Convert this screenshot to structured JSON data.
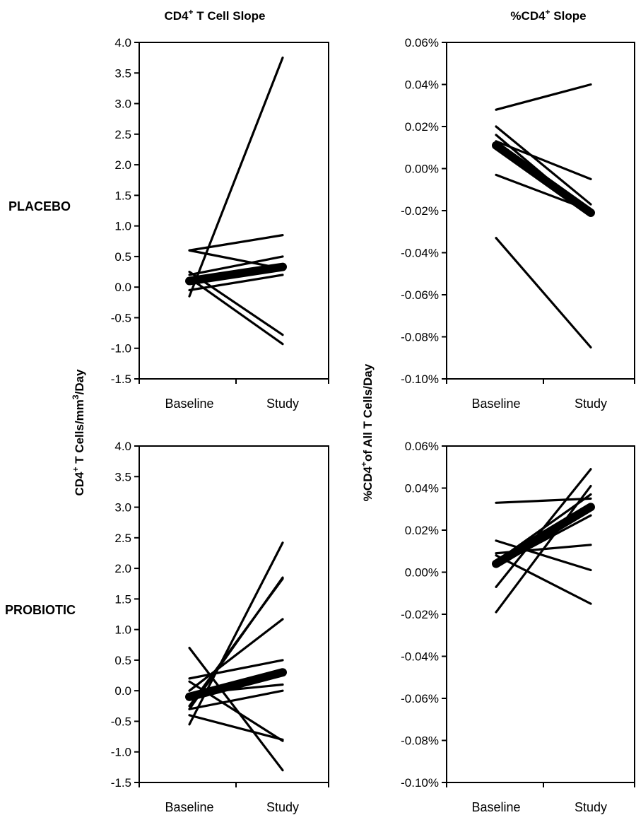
{
  "figure": {
    "column_titles": {
      "left": {
        "main": "CD4",
        "sup": "+",
        "rest": " T Cell Slope"
      },
      "right": {
        "main": "%CD4",
        "sup": "+",
        "rest": " Slope"
      }
    },
    "row_labels": [
      "PLACEBO",
      "PROBIOTIC"
    ],
    "y_axis_labels": {
      "left": {
        "p1": "CD4",
        "s1": "+",
        "p2": " T Cells/mm",
        "s2": "3",
        "p3": "/Day"
      },
      "right": {
        "p1": "%CD4",
        "s1": "+",
        "p2": "of All T Cells/Day",
        "s2": "",
        "p3": ""
      }
    }
  },
  "chart_data": [
    {
      "type": "line",
      "panel": "placebo-cd4",
      "categories": [
        "Baseline",
        "Study"
      ],
      "ylim": [
        -1.5,
        4.0
      ],
      "yticks": [
        "4.0",
        "3.5",
        "3.0",
        "2.5",
        "2.0",
        "1.5",
        "1.0",
        "0.5",
        "0.0",
        "-0.5",
        "-1.0",
        "-1.5"
      ],
      "ytick_values": [
        4.0,
        3.5,
        3.0,
        2.5,
        2.0,
        1.5,
        1.0,
        0.5,
        0.0,
        -0.5,
        -1.0,
        -1.5
      ],
      "series": [
        {
          "values": [
            -0.15,
            3.75
          ]
        },
        {
          "values": [
            0.6,
            0.85
          ]
        },
        {
          "values": [
            0.6,
            0.3
          ]
        },
        {
          "values": [
            0.2,
            0.5
          ]
        },
        {
          "values": [
            0.25,
            -0.78
          ]
        },
        {
          "values": [
            0.15,
            -0.93
          ]
        },
        {
          "values": [
            -0.05,
            0.2
          ]
        },
        {
          "values": [
            0.1,
            0.33
          ],
          "mean": true
        }
      ]
    },
    {
      "type": "line",
      "panel": "placebo-pct",
      "categories": [
        "Baseline",
        "Study"
      ],
      "ylim": [
        -0.1,
        0.06
      ],
      "yticks": [
        "0.06%",
        "0.04%",
        "0.02%",
        "0.00%",
        "-0.02%",
        "-0.04%",
        "-0.06%",
        "-0.08%",
        "-0.10%"
      ],
      "ytick_values": [
        0.06,
        0.04,
        0.02,
        0.0,
        -0.02,
        -0.04,
        -0.06,
        -0.08,
        -0.1
      ],
      "series": [
        {
          "values": [
            0.028,
            0.04
          ]
        },
        {
          "values": [
            0.02,
            -0.017
          ]
        },
        {
          "values": [
            0.016,
            -0.022
          ]
        },
        {
          "values": [
            0.013,
            -0.005
          ]
        },
        {
          "values": [
            -0.003,
            -0.02
          ]
        },
        {
          "values": [
            -0.033,
            -0.085
          ]
        },
        {
          "values": [
            0.011,
            -0.021
          ],
          "mean": true
        }
      ]
    },
    {
      "type": "line",
      "panel": "probiotic-cd4",
      "categories": [
        "Baseline",
        "Study"
      ],
      "ylim": [
        -1.5,
        4.0
      ],
      "yticks": [
        "4.0",
        "3.5",
        "3.0",
        "2.5",
        "2.0",
        "1.5",
        "1.0",
        "0.5",
        "0.0",
        "-0.5",
        "-1.0",
        "-1.5"
      ],
      "ytick_values": [
        4.0,
        3.5,
        3.0,
        2.5,
        2.0,
        1.5,
        1.0,
        0.5,
        0.0,
        -0.5,
        -1.0,
        -1.5
      ],
      "series": [
        {
          "values": [
            -0.55,
            2.42
          ]
        },
        {
          "values": [
            -0.3,
            1.85
          ]
        },
        {
          "values": [
            -0.25,
            1.83
          ]
        },
        {
          "values": [
            0.0,
            1.17
          ]
        },
        {
          "values": [
            0.2,
            0.5
          ]
        },
        {
          "values": [
            0.7,
            -1.3
          ]
        },
        {
          "values": [
            0.15,
            -0.82
          ]
        },
        {
          "values": [
            -0.4,
            -0.8
          ]
        },
        {
          "values": [
            -0.05,
            0.1
          ]
        },
        {
          "values": [
            -0.3,
            0.0
          ]
        },
        {
          "values": [
            -0.1,
            0.3
          ],
          "mean": true
        }
      ]
    },
    {
      "type": "line",
      "panel": "probiotic-pct",
      "categories": [
        "Baseline",
        "Study"
      ],
      "ylim": [
        -0.1,
        0.06
      ],
      "yticks": [
        "0.06%",
        "0.04%",
        "0.02%",
        "0.00%",
        "-0.02%",
        "-0.04%",
        "-0.06%",
        "-0.08%",
        "-0.10%"
      ],
      "ytick_values": [
        0.06,
        0.04,
        0.02,
        0.0,
        -0.02,
        -0.04,
        -0.06,
        -0.08,
        -0.1
      ],
      "series": [
        {
          "values": [
            0.033,
            0.035
          ]
        },
        {
          "values": [
            0.015,
            0.001
          ]
        },
        {
          "values": [
            0.008,
            -0.015
          ]
        },
        {
          "values": [
            0.009,
            0.013
          ]
        },
        {
          "values": [
            -0.019,
            0.041
          ]
        },
        {
          "values": [
            -0.007,
            0.049
          ]
        },
        {
          "values": [
            0.005,
            0.037
          ]
        },
        {
          "values": [
            0.003,
            0.027
          ]
        },
        {
          "values": [
            0.004,
            0.031
          ],
          "mean": true
        }
      ]
    }
  ]
}
